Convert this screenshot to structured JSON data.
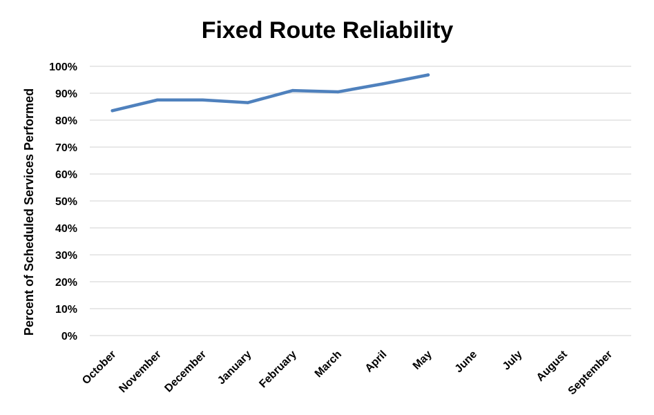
{
  "chart_data": {
    "type": "line",
    "title": "Fixed Route Reliability",
    "xlabel": "",
    "ylabel": "Percent of Scheduled Services Performed",
    "categories": [
      "October",
      "November",
      "December",
      "January",
      "February",
      "March",
      "April",
      "May",
      "June",
      "July",
      "August",
      "September"
    ],
    "series": [
      {
        "values": [
          83.5,
          87.5,
          87.5,
          86.5,
          91,
          90.5,
          93.5,
          96.8,
          null,
          null,
          null,
          null
        ],
        "color": "#4f81bd"
      }
    ],
    "ylim": [
      0,
      100
    ],
    "yticks": [
      0,
      10,
      20,
      30,
      40,
      50,
      60,
      70,
      80,
      90,
      100
    ],
    "ytick_labels": [
      "0%",
      "10%",
      "20%",
      "30%",
      "40%",
      "50%",
      "60%",
      "70%",
      "80%",
      "90%",
      "100%"
    ],
    "grid": true,
    "legend": "none"
  }
}
